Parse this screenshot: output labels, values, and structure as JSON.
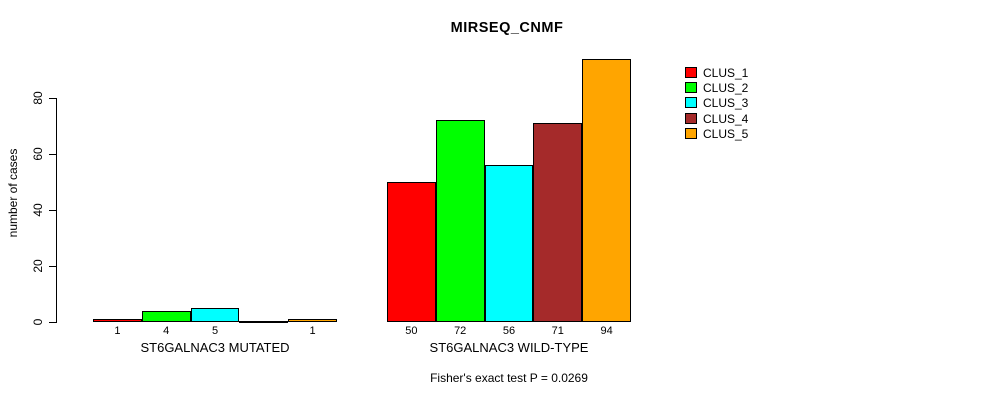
{
  "title": "MIRSEQ_CNMF",
  "footer": "Fisher's exact test P = 0.0269",
  "y_axis": {
    "label": "number of cases",
    "ticks": [
      0,
      20,
      40,
      60,
      80
    ]
  },
  "legend": {
    "items": [
      {
        "label": "CLUS_1",
        "color": "#FF0000"
      },
      {
        "label": "CLUS_2",
        "color": "#00FF00"
      },
      {
        "label": "CLUS_3",
        "color": "#00FFFF"
      },
      {
        "label": "CLUS_4",
        "color": "#A52A2A"
      },
      {
        "label": "CLUS_5",
        "color": "#FFA500"
      }
    ]
  },
  "chart_data": {
    "type": "bar",
    "title": "MIRSEQ_CNMF",
    "xlabel": "",
    "ylabel": "number of cases",
    "ylim": [
      0,
      94
    ],
    "yticks": [
      0,
      20,
      40,
      60,
      80
    ],
    "grid": false,
    "legend_position": "right",
    "categories": [
      "ST6GALNAC3 MUTATED",
      "ST6GALNAC3 WILD-TYPE"
    ],
    "series": [
      {
        "name": "CLUS_1",
        "color": "#FF0000",
        "values": [
          1,
          50
        ]
      },
      {
        "name": "CLUS_2",
        "color": "#00FF00",
        "values": [
          4,
          72
        ]
      },
      {
        "name": "CLUS_3",
        "color": "#00FFFF",
        "values": [
          5,
          56
        ]
      },
      {
        "name": "CLUS_4",
        "color": "#A52A2A",
        "values": [
          0,
          71
        ]
      },
      {
        "name": "CLUS_5",
        "color": "#FFA500",
        "values": [
          1,
          94
        ]
      }
    ],
    "bar_value_labels": [
      [
        "1",
        "4",
        "5",
        "",
        "1"
      ],
      [
        "50",
        "72",
        "56",
        "71",
        "94"
      ]
    ],
    "annotation": "Fisher's exact test P = 0.0269"
  }
}
